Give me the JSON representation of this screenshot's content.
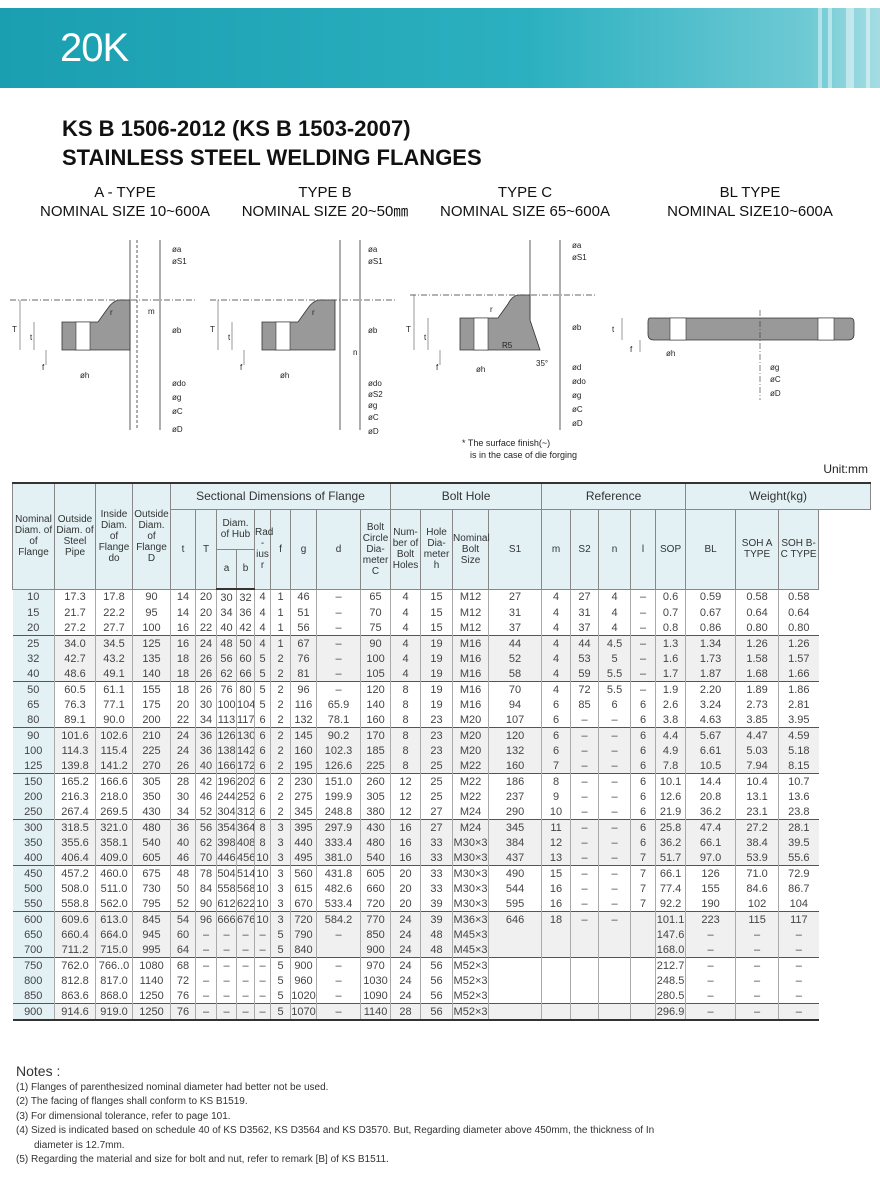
{
  "banner": {
    "title": "20K",
    "color": "#1a9fb0"
  },
  "title": {
    "line1": "KS B 1506-2012 (KS B 1503-2007)",
    "line2": "STAINLESS STEEL WELDING FLANGES"
  },
  "types": [
    {
      "name": "A - TYPE",
      "size": "NOMINAL SIZE 10~600A"
    },
    {
      "name": "TYPE B",
      "size": "NOMINAL SIZE 20~50㎜"
    },
    {
      "name": "TYPE C",
      "size": "NOMINAL SIZE 65~600A"
    },
    {
      "name": "BL TYPE",
      "size": "NOMINAL SIZE10~600A"
    }
  ],
  "diagram_labels": {
    "a": {
      "a": "øa",
      "s1": "øS1",
      "m": "m",
      "r": "r",
      "b": "øb",
      "T": "T",
      "t": "t",
      "f": "f",
      "h": "øh",
      "d0": "ødo",
      "g": "øg",
      "C": "øC",
      "D": "øD"
    },
    "b": {
      "a": "øa",
      "s1": "øS1",
      "r": "r",
      "b": "øb",
      "n": "n",
      "T": "T",
      "t": "t",
      "f": "f",
      "h": "øh",
      "d0": "ødo",
      "s2": "øS2",
      "g": "øg",
      "C": "øC",
      "D": "øD"
    },
    "c": {
      "a": "øa",
      "s1": "øS1",
      "r": "r",
      "b": "øb",
      "r5": "R5",
      "ang": "35°",
      "d": "ød",
      "T": "T",
      "t": "t",
      "f": "f",
      "h": "øh",
      "d0": "ødo",
      "g": "øg",
      "C": "øC",
      "D": "øD"
    },
    "bl": {
      "t": "t",
      "f": "f",
      "h": "øh",
      "g": "øg",
      "C": "øC",
      "D": "øD"
    }
  },
  "surface_note": {
    "line1": "* The surface finish(~)",
    "line2": "is in  the case of die forging"
  },
  "unit": "Unit:mm",
  "table": {
    "groups": {
      "sectional": "Sectional Dimensions of Flange",
      "bolt": "Bolt Hole",
      "reference": "Reference",
      "weight": "Weight(kg)",
      "hub": "Diam. of Hub"
    },
    "headers": {
      "nominal": "Nominal Diam. of of Flange",
      "od": "Outside Diam. of Steel Pipe",
      "id": "Inside Diam. of Flange do",
      "D": "Outside Diam. of Flange D",
      "t": "t",
      "T": "T",
      "a": "a",
      "b": "b",
      "r": "Rad -ius r",
      "f": "f",
      "g": "g",
      "d": "d",
      "C": "Bolt Circle Dia- meter C",
      "num": "Num- ber of Bolt Holes",
      "h": "Hole Dia- meter h",
      "bolt": "Nominal Bolt Size",
      "S1": "S1",
      "m": "m",
      "S2": "S2",
      "n": "n",
      "l": "l",
      "SOP": "SOP",
      "BL": "BL",
      "SOHA": "SOH A TYPE",
      "SOHBC": "SOH B-C TYPE"
    },
    "rows": [
      [
        "10",
        "17.3",
        "17.8",
        "90",
        "14",
        "20",
        "30",
        "32",
        "4",
        "1",
        "46",
        "–",
        "65",
        "4",
        "15",
        "M12",
        "27",
        "4",
        "27",
        "4",
        "–",
        "0.6",
        "0.59",
        "0.58",
        "0.58"
      ],
      [
        "15",
        "21.7",
        "22.2",
        "95",
        "14",
        "20",
        "34",
        "36",
        "4",
        "1",
        "51",
        "–",
        "70",
        "4",
        "15",
        "M12",
        "31",
        "4",
        "31",
        "4",
        "–",
        "0.7",
        "0.67",
        "0.64",
        "0.64"
      ],
      [
        "20",
        "27.2",
        "27.7",
        "100",
        "16",
        "22",
        "40",
        "42",
        "4",
        "1",
        "56",
        "–",
        "75",
        "4",
        "15",
        "M12",
        "37",
        "4",
        "37",
        "4",
        "–",
        "0.8",
        "0.86",
        "0.80",
        "0.80"
      ],
      [
        "25",
        "34.0",
        "34.5",
        "125",
        "16",
        "24",
        "48",
        "50",
        "4",
        "1",
        "67",
        "–",
        "90",
        "4",
        "19",
        "M16",
        "44",
        "4",
        "44",
        "4.5",
        "–",
        "1.3",
        "1.34",
        "1.26",
        "1.26"
      ],
      [
        "32",
        "42.7",
        "43.2",
        "135",
        "18",
        "26",
        "56",
        "60",
        "5",
        "2",
        "76",
        "–",
        "100",
        "4",
        "19",
        "M16",
        "52",
        "4",
        "53",
        "5",
        "–",
        "1.6",
        "1.73",
        "1.58",
        "1.57"
      ],
      [
        "40",
        "48.6",
        "49.1",
        "140",
        "18",
        "26",
        "62",
        "66",
        "5",
        "2",
        "81",
        "–",
        "105",
        "4",
        "19",
        "M16",
        "58",
        "4",
        "59",
        "5.5",
        "–",
        "1.7",
        "1.87",
        "1.68",
        "1.66"
      ],
      [
        "50",
        "60.5",
        "61.1",
        "155",
        "18",
        "26",
        "76",
        "80",
        "5",
        "2",
        "96",
        "–",
        "120",
        "8",
        "19",
        "M16",
        "70",
        "4",
        "72",
        "5.5",
        "–",
        "1.9",
        "2.20",
        "1.89",
        "1.86"
      ],
      [
        "65",
        "76.3",
        "77.1",
        "175",
        "20",
        "30",
        "100",
        "104",
        "5",
        "2",
        "116",
        "65.9",
        "140",
        "8",
        "19",
        "M16",
        "94",
        "6",
        "85",
        "6",
        "6",
        "2.6",
        "3.24",
        "2.73",
        "2.81"
      ],
      [
        "80",
        "89.1",
        "90.0",
        "200",
        "22",
        "34",
        "113",
        "117",
        "6",
        "2",
        "132",
        "78.1",
        "160",
        "8",
        "23",
        "M20",
        "107",
        "6",
        "–",
        "–",
        "6",
        "3.8",
        "4.63",
        "3.85",
        "3.95"
      ],
      [
        "90",
        "101.6",
        "102.6",
        "210",
        "24",
        "36",
        "126",
        "130",
        "6",
        "2",
        "145",
        "90.2",
        "170",
        "8",
        "23",
        "M20",
        "120",
        "6",
        "–",
        "–",
        "6",
        "4.4",
        "5.67",
        "4.47",
        "4.59"
      ],
      [
        "100",
        "114.3",
        "115.4",
        "225",
        "24",
        "36",
        "138",
        "142",
        "6",
        "2",
        "160",
        "102.3",
        "185",
        "8",
        "23",
        "M20",
        "132",
        "6",
        "–",
        "–",
        "6",
        "4.9",
        "6.61",
        "5.03",
        "5.18"
      ],
      [
        "125",
        "139.8",
        "141.2",
        "270",
        "26",
        "40",
        "166",
        "172",
        "6",
        "2",
        "195",
        "126.6",
        "225",
        "8",
        "25",
        "M22",
        "160",
        "7",
        "–",
        "–",
        "6",
        "7.8",
        "10.5",
        "7.94",
        "8.15"
      ],
      [
        "150",
        "165.2",
        "166.6",
        "305",
        "28",
        "42",
        "196",
        "202",
        "6",
        "2",
        "230",
        "151.0",
        "260",
        "12",
        "25",
        "M22",
        "186",
        "8",
        "–",
        "–",
        "6",
        "10.1",
        "14.4",
        "10.4",
        "10.7"
      ],
      [
        "200",
        "216.3",
        "218.0",
        "350",
        "30",
        "46",
        "244",
        "252",
        "6",
        "2",
        "275",
        "199.9",
        "305",
        "12",
        "25",
        "M22",
        "237",
        "9",
        "–",
        "–",
        "6",
        "12.6",
        "20.8",
        "13.1",
        "13.6"
      ],
      [
        "250",
        "267.4",
        "269.5",
        "430",
        "34",
        "52",
        "304",
        "312",
        "6",
        "2",
        "345",
        "248.8",
        "380",
        "12",
        "27",
        "M24",
        "290",
        "10",
        "–",
        "–",
        "6",
        "21.9",
        "36.2",
        "23.1",
        "23.8"
      ],
      [
        "300",
        "318.5",
        "321.0",
        "480",
        "36",
        "56",
        "354",
        "364",
        "8",
        "3",
        "395",
        "297.9",
        "430",
        "16",
        "27",
        "M24",
        "345",
        "11",
        "–",
        "–",
        "6",
        "25.8",
        "47.4",
        "27.2",
        "28.1"
      ],
      [
        "350",
        "355.6",
        "358.1",
        "540",
        "40",
        "62",
        "398",
        "408",
        "8",
        "3",
        "440",
        "333.4",
        "480",
        "16",
        "33",
        "M30×3",
        "384",
        "12",
        "–",
        "–",
        "6",
        "36.2",
        "66.1",
        "38.4",
        "39.5"
      ],
      [
        "400",
        "406.4",
        "409.0",
        "605",
        "46",
        "70",
        "446",
        "456",
        "10",
        "3",
        "495",
        "381.0",
        "540",
        "16",
        "33",
        "M30×3",
        "437",
        "13",
        "–",
        "–",
        "7",
        "51.7",
        "97.0",
        "53.9",
        "55.6"
      ],
      [
        "450",
        "457.2",
        "460.0",
        "675",
        "48",
        "78",
        "504",
        "514",
        "10",
        "3",
        "560",
        "431.8",
        "605",
        "20",
        "33",
        "M30×3",
        "490",
        "15",
        "–",
        "–",
        "7",
        "66.1",
        "126",
        "71.0",
        "72.9"
      ],
      [
        "500",
        "508.0",
        "511.0",
        "730",
        "50",
        "84",
        "558",
        "568",
        "10",
        "3",
        "615",
        "482.6",
        "660",
        "20",
        "33",
        "M30×3",
        "544",
        "16",
        "–",
        "–",
        "7",
        "77.4",
        "155",
        "84.6",
        "86.7"
      ],
      [
        "550",
        "558.8",
        "562.0",
        "795",
        "52",
        "90",
        "612",
        "622",
        "10",
        "3",
        "670",
        "533.4",
        "720",
        "20",
        "39",
        "M30×3",
        "595",
        "16",
        "–",
        "–",
        "7",
        "92.2",
        "190",
        "102",
        "104"
      ],
      [
        "600",
        "609.6",
        "613.0",
        "845",
        "54",
        "96",
        "666",
        "676",
        "10",
        "3",
        "720",
        "584.2",
        "770",
        "24",
        "39",
        "M36×3",
        "646",
        "18",
        "–",
        "–",
        "",
        "101.1",
        "223",
        "115",
        "117"
      ],
      [
        "650",
        "660.4",
        "664.0",
        "945",
        "60",
        "–",
        "–",
        "–",
        "–",
        "5",
        "790",
        "–",
        "850",
        "24",
        "48",
        "M45×3",
        "",
        "",
        "",
        "",
        "",
        "147.6",
        "–",
        "–",
        "–"
      ],
      [
        "700",
        "711.2",
        "715.0",
        "995",
        "64",
        "–",
        "–",
        "–",
        "–",
        "5",
        "840",
        "",
        "900",
        "24",
        "48",
        "M45×3",
        "",
        "",
        "",
        "",
        "",
        "168.0",
        "–",
        "–",
        "–"
      ],
      [
        "750",
        "762.0",
        "766..0",
        "1080",
        "68",
        "–",
        "–",
        "–",
        "–",
        "5",
        "900",
        "–",
        "970",
        "24",
        "56",
        "M52×3",
        "",
        "",
        "",
        "",
        "",
        "212.7",
        "–",
        "–",
        "–"
      ],
      [
        "800",
        "812.8",
        "817.0",
        "1140",
        "72",
        "–",
        "–",
        "–",
        "–",
        "5",
        "960",
        "–",
        "1030",
        "24",
        "56",
        "M52×3",
        "",
        "",
        "",
        "",
        "",
        "248.5",
        "–",
        "–",
        "–"
      ],
      [
        "850",
        "863.6",
        "868.0",
        "1250",
        "76",
        "–",
        "–",
        "–",
        "–",
        "5",
        "1020",
        "–",
        "1090",
        "24",
        "56",
        "M52×3",
        "",
        "",
        "",
        "",
        "",
        "280.5",
        "–",
        "–",
        "–"
      ],
      [
        "900",
        "914.6",
        "919.0",
        "1250",
        "76",
        "–",
        "–",
        "–",
        "–",
        "5",
        "1070",
        "–",
        "1140",
        "28",
        "56",
        "M52×3",
        "",
        "",
        "",
        "",
        "",
        "296.9",
        "–",
        "–",
        "–"
      ]
    ]
  },
  "notes": {
    "heading": "Notes :",
    "items": [
      "(1) Flanges of parenthesized nominal diameter had better not  be used.",
      "(2) The facing of flanges shall conform to KS B1519.",
      "(3) For dimensional tolerance, refer to page 101.",
      "(4) Sized is indicated based on schedule 40 of KS D3562, KS D3564 and KS D3570. But, Regarding diameter above 450mm, the thickness of In",
      "diameter is 12.7mm.",
      "(5) Regarding the material and size for bolt and nut, refer to  remark [B] of KS B1511."
    ]
  }
}
